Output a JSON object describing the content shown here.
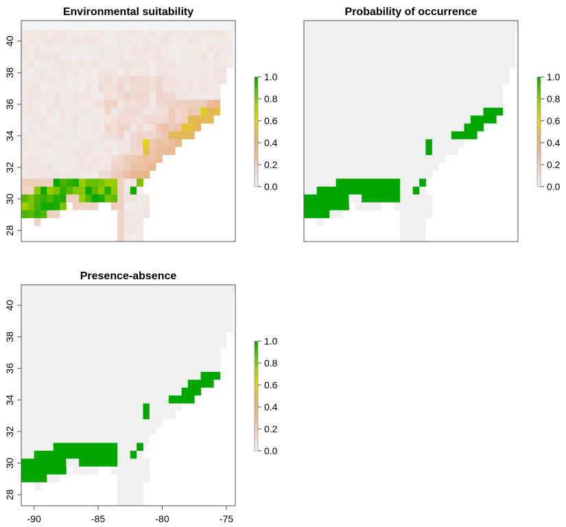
{
  "colors": {
    "grey_cell": "#f0f0f0",
    "green": "#00a600",
    "scale": [
      "#f2f2f2",
      "#f1d7cf",
      "#ebb496",
      "#e3b46a",
      "#e8d200",
      "#a6cf00",
      "#5cb800",
      "#00a600"
    ]
  },
  "chart_data": [
    {
      "type": "heatmap",
      "title": "Environmental suitability",
      "xlim": [
        -91,
        -74.3
      ],
      "ylim": [
        27.3,
        41.3
      ],
      "y_ticks": [
        28,
        30,
        32,
        34,
        36,
        38,
        40
      ],
      "legend": {
        "placement": "right",
        "ticks": [
          "0.0",
          "0.2",
          "0.4",
          "0.6",
          "0.8",
          "1.0"
        ]
      },
      "description": "Continuous suitability values 0-1; highest (~0.8-1.0) along the Gulf coast near 30N, 86-90W; moderate (~0.3-0.6) along the Atlantic coastal plain 32-36N, 76-81W; low elsewhere.",
      "high_cells": [
        {
          "lon": -90.5,
          "lat": 30.0,
          "value": 0.9
        },
        {
          "lon": -89.5,
          "lat": 30.0,
          "value": 0.95
        },
        {
          "lon": -88.5,
          "lat": 30.5,
          "value": 0.85
        },
        {
          "lon": -86.0,
          "lat": 30.5,
          "value": 0.9
        },
        {
          "lon": -84.5,
          "lat": 30.5,
          "value": 0.95
        },
        {
          "lon": -76.5,
          "lat": 35.0,
          "value": 0.6
        },
        {
          "lon": -78.0,
          "lat": 33.5,
          "value": 0.45
        },
        {
          "lon": -81.0,
          "lat": 32.5,
          "value": 0.35
        }
      ]
    },
    {
      "type": "heatmap",
      "title": "Probability of occurrence",
      "xlim": [
        -91,
        -74.3
      ],
      "ylim": [
        27.3,
        41.3
      ],
      "legend": {
        "placement": "right",
        "ticks": [
          "0.0",
          "0.2",
          "0.4",
          "0.6",
          "0.8",
          "1.0"
        ]
      },
      "description": "Binary-like occurrence: value 1 (green) along Gulf coast 29-31.3N from 91W to 83.5W and along Atlantic coast 33-36N, 75-81.5W; 0 elsewhere."
    },
    {
      "type": "heatmap",
      "title": "Presence-absence",
      "xlim": [
        -91,
        -74.3
      ],
      "ylim": [
        27.3,
        41.3
      ],
      "x_ticks": [
        -90,
        -85,
        -80,
        -75
      ],
      "y_ticks": [
        28,
        30,
        32,
        34,
        36,
        38,
        40
      ],
      "legend": {
        "placement": "right",
        "ticks": [
          "0.0",
          "0.2",
          "0.4",
          "0.6",
          "0.8",
          "1.0"
        ]
      },
      "description": "Presence (1, green) along Gulf coast 29-31.3N from 91W to 83.5W and Atlantic coast 33-36N, 75-81.5W; absence (0) elsewhere."
    }
  ]
}
